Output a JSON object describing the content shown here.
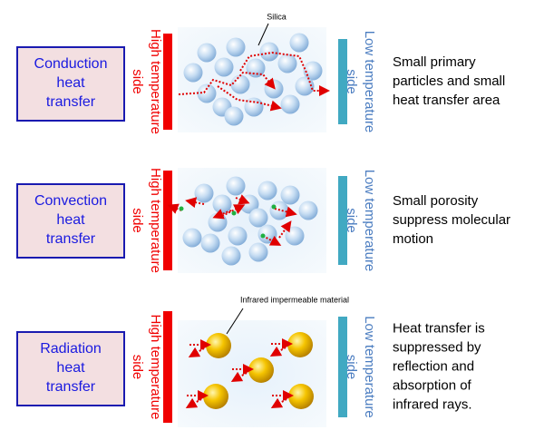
{
  "rows": [
    {
      "label": [
        "Conduction",
        "heat",
        "transfer"
      ],
      "hot_side": [
        "High temperature",
        "side"
      ],
      "cold_side": [
        "Low temperature",
        "side"
      ],
      "annotation": "Silica",
      "description": [
        "Small primary",
        "particles and small",
        "heat transfer area"
      ]
    },
    {
      "label": [
        "Convection",
        "heat",
        "transfer"
      ],
      "hot_side": [
        "High temperature",
        "side"
      ],
      "cold_side": [
        "Low temperature",
        "side"
      ],
      "description": [
        "Small porosity",
        "suppress molecular",
        "motion"
      ]
    },
    {
      "label": [
        "Radiation",
        "heat",
        "transfer"
      ],
      "hot_side": [
        "High temperature",
        "side"
      ],
      "cold_side": [
        "Low temperature",
        "side"
      ],
      "annotation": "Infrared impermeable material",
      "description": [
        "Heat transfer is",
        "suppressed by",
        "reflection and",
        "absorption of",
        "infrared rays."
      ]
    }
  ]
}
